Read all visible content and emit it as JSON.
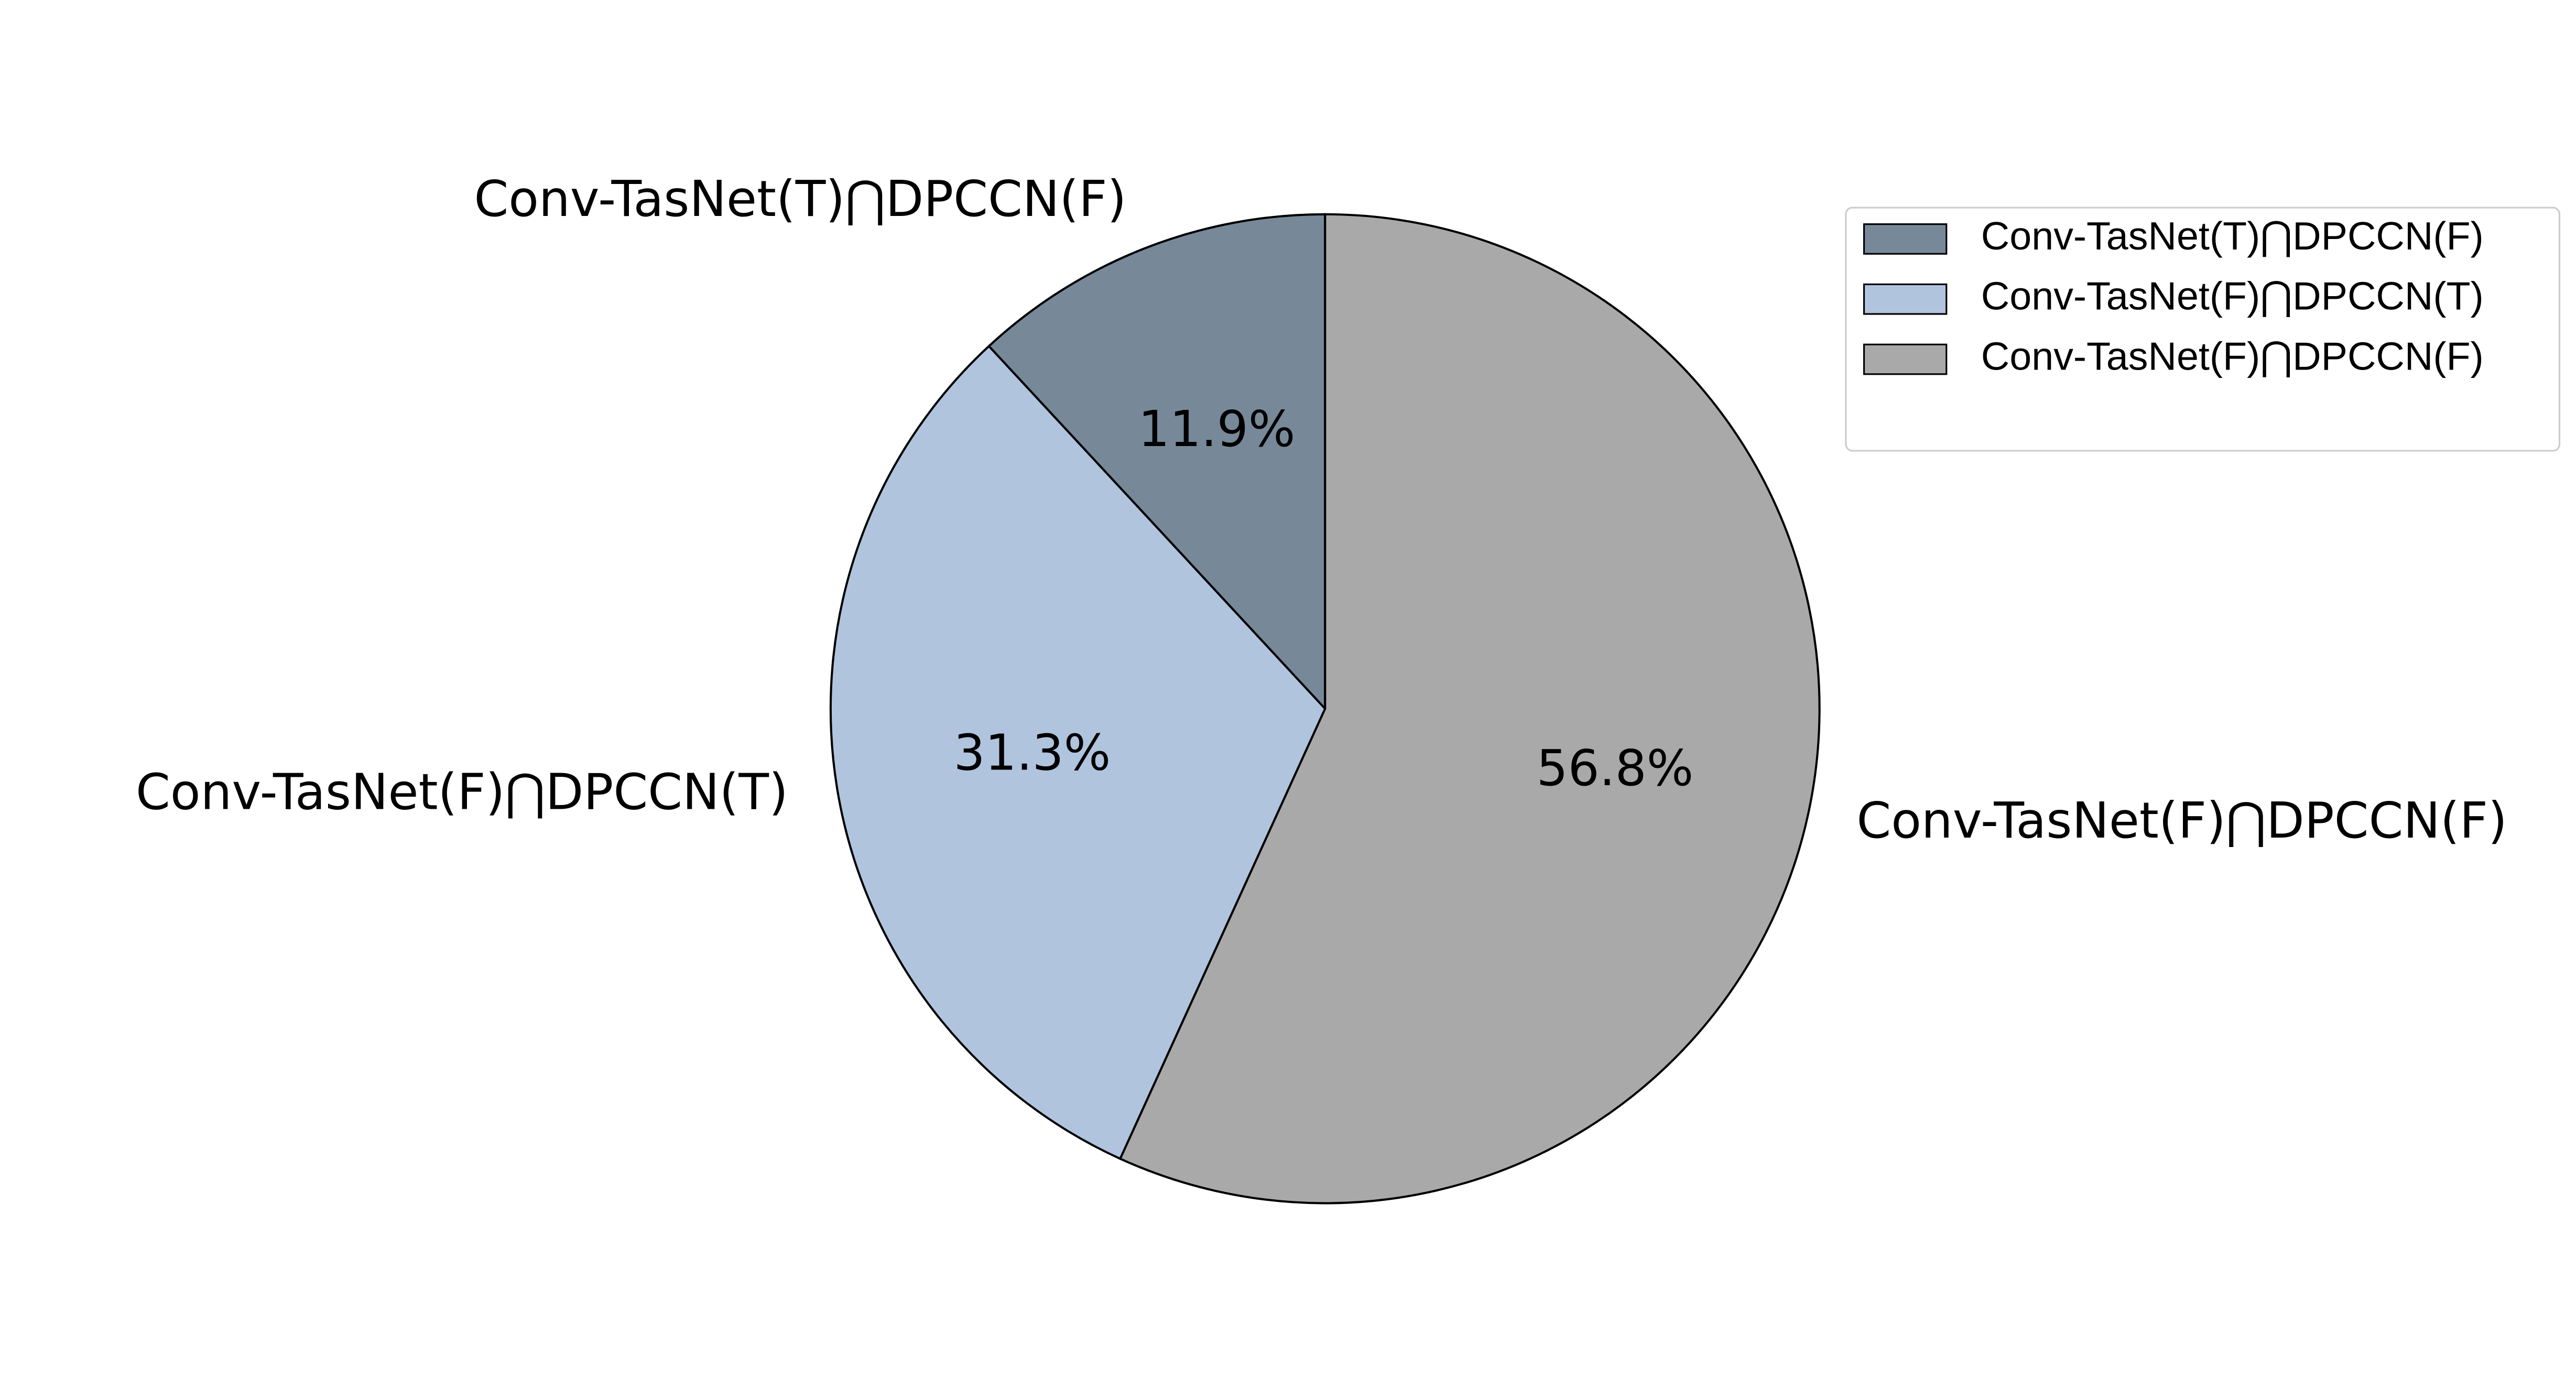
{
  "chart_data": {
    "type": "pie",
    "categories": [
      "Conv-TasNet(T)⋂DPCCN(F)",
      "Conv-TasNet(F)⋂DPCCN(T)",
      "Conv-TasNet(F)⋂DPCCN(F)"
    ],
    "values": [
      11.9,
      31.3,
      56.8
    ],
    "value_labels": [
      "11.9%",
      "31.3%",
      "56.8%"
    ],
    "colors": [
      "#778899",
      "#b0c4de",
      "#a9a9a9"
    ],
    "legend": "upper right"
  }
}
